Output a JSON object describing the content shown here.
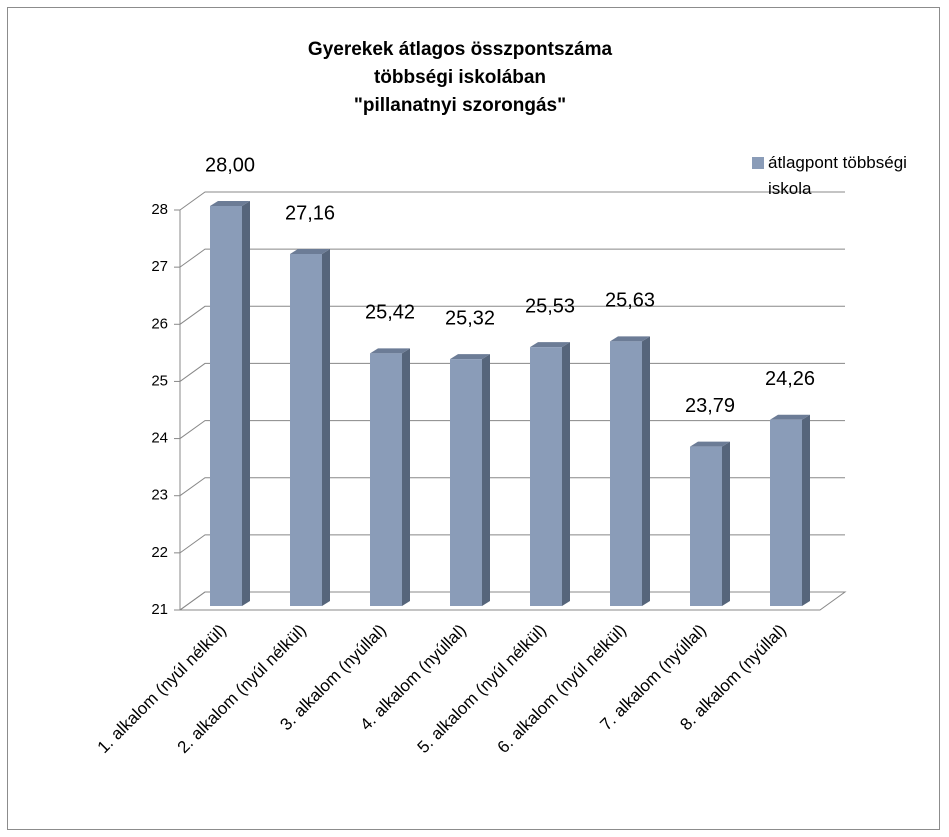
{
  "chart_data": {
    "type": "bar3d",
    "title": [
      "Gyerekek átlagos összpontszáma",
      "többségi iskolában",
      "\"pillanatnyi szorongás\""
    ],
    "categories": [
      "1. alkalom (nyúl nélkül)",
      "2. alkalom (nyúl nélkül)",
      "3. alkalom (nyúllal)",
      "4. alkalom (nyúllal)",
      "5. alkalom (nyúl nélkül)",
      "6. alkalom (nyúl nélkül)",
      "7. alkalom (nyúllal)",
      "8. alkalom (nyúllal)"
    ],
    "series": [
      {
        "name": "átlagpont többségi iskola",
        "color": "#8a9cb8",
        "values": [
          28,
          27.16,
          25.42,
          25.32,
          25.53,
          25.63,
          23.79,
          24.26
        ],
        "value_labels": [
          "28,00",
          "27,16",
          "25,42",
          "25,32",
          "25,53",
          "25,63",
          "23,79",
          "24,26"
        ]
      }
    ],
    "ylim": [
      21,
      28
    ],
    "yticks": [
      21,
      22,
      23,
      24,
      25,
      26,
      27,
      28
    ],
    "grid": true,
    "legend": "top-right"
  }
}
